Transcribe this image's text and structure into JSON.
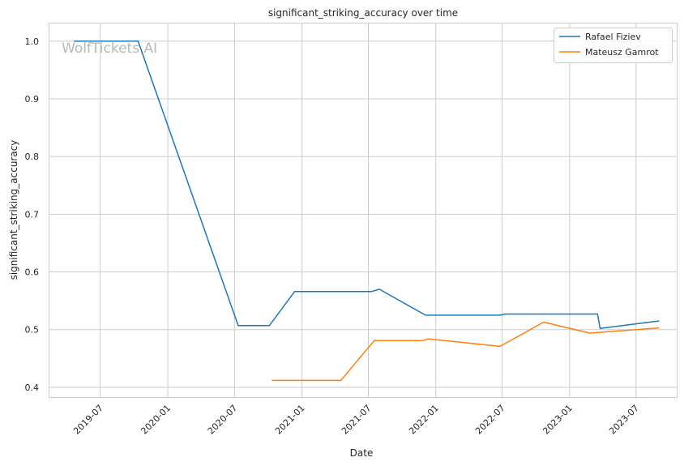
{
  "chart_data": {
    "type": "line",
    "title": "significant_striking_accuracy over time",
    "xlabel": "Date",
    "ylabel": "significant_striking_accuracy",
    "watermark": "WolfTickets.AI",
    "x_ticks": [
      "2019-07",
      "2020-01",
      "2020-07",
      "2021-01",
      "2021-07",
      "2022-01",
      "2022-07",
      "2023-01",
      "2023-07"
    ],
    "y_ticks": [
      "0.4",
      "0.5",
      "0.6",
      "0.7",
      "0.8",
      "0.9",
      "1.0"
    ],
    "xlim": [
      "2019-02-10",
      "2023-10-20"
    ],
    "ylim": [
      0.383,
      1.032
    ],
    "grid": true,
    "legend_position": "top-right",
    "series": [
      {
        "name": "Rafael Fiziev",
        "color": "#1f77b4",
        "points": [
          [
            "2019-04-20",
            1.0
          ],
          [
            "2019-10-12",
            1.0
          ],
          [
            "2020-07-11",
            0.507
          ],
          [
            "2020-10-04",
            0.507
          ],
          [
            "2020-12-12",
            0.566
          ],
          [
            "2021-07-10",
            0.566
          ],
          [
            "2021-07-31",
            0.57
          ],
          [
            "2021-12-04",
            0.525
          ],
          [
            "2022-06-25",
            0.525
          ],
          [
            "2022-07-09",
            0.527
          ],
          [
            "2023-03-18",
            0.527
          ],
          [
            "2023-03-25",
            0.502
          ],
          [
            "2023-09-02",
            0.515
          ]
        ]
      },
      {
        "name": "Mateusz Gamrot",
        "color": "#ff7f0e",
        "points": [
          [
            "2020-10-11",
            0.412
          ],
          [
            "2021-04-17",
            0.412
          ],
          [
            "2021-07-17",
            0.481
          ],
          [
            "2021-11-27",
            0.481
          ],
          [
            "2021-12-11",
            0.484
          ],
          [
            "2022-06-25",
            0.471
          ],
          [
            "2022-10-22",
            0.513
          ],
          [
            "2023-02-25",
            0.494
          ],
          [
            "2023-09-02",
            0.503
          ]
        ]
      }
    ]
  }
}
